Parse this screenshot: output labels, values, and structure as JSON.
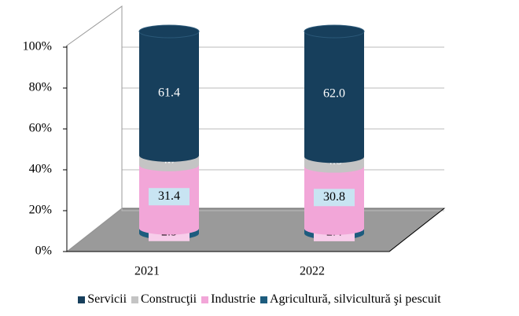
{
  "chart_data": {
    "type": "stacked-cylinder",
    "categories": [
      "2021",
      "2022"
    ],
    "series": [
      {
        "name": "Agricultură, silvicultură şi pescuit",
        "color": "#1d5c7e",
        "values": [
          2.5,
          2.4
        ]
      },
      {
        "name": "Industrie",
        "color": "#f2a6d8",
        "values": [
          31.4,
          30.8
        ]
      },
      {
        "name": "Construcţii",
        "color": "#c4c4c4",
        "values": [
          4.7,
          4.8
        ]
      },
      {
        "name": "Servicii",
        "color": "#173f5c",
        "values": [
          61.4,
          62.0
        ],
        "value_labels": [
          "61.4",
          "62.0"
        ]
      }
    ],
    "legend_order": [
      3,
      2,
      1,
      0
    ],
    "ylim": [
      0,
      100
    ],
    "yticks": [
      {
        "value": 0,
        "label": "0%"
      },
      {
        "value": 20,
        "label": "20%"
      },
      {
        "value": 40,
        "label": "40%"
      },
      {
        "value": 60,
        "label": "60%"
      },
      {
        "value": 80,
        "label": "80%"
      },
      {
        "value": 100,
        "label": "100%"
      }
    ],
    "grid": true
  }
}
